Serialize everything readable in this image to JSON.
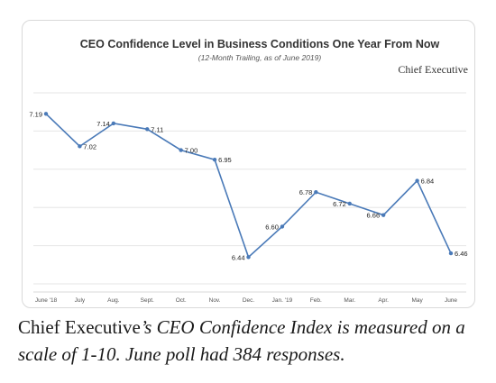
{
  "chart_data": {
    "type": "line",
    "title": "CEO Confidence Level in Business Conditions One Year From Now",
    "subtitle": "(12-Month Trailing, as of June 2019)",
    "brand": "Chief Executive",
    "categories": [
      "June '18",
      "July",
      "Aug.",
      "Sept.",
      "Oct.",
      "Nov.",
      "Dec.",
      "Jan. '19",
      "Feb.",
      "Mar.",
      "Apr.",
      "May",
      "June"
    ],
    "values": [
      7.19,
      7.02,
      7.14,
      7.11,
      7.0,
      6.95,
      6.44,
      6.6,
      6.78,
      6.72,
      6.66,
      6.84,
      6.46
    ],
    "data_labels": [
      "7.19",
      "7.02",
      "7.14",
      "7.11",
      "7.00",
      "6.95",
      "6.44",
      "6.60",
      "6.78",
      "6.72",
      "6.66",
      "6.84",
      "6.46"
    ],
    "ylim": [
      6.3,
      7.3
    ],
    "grid": true,
    "line_color": "#4a7ab8",
    "grid_color": "#e6e6e6"
  },
  "caption": {
    "brand": "Chief Executive",
    "rest": "’s CEO Confidence Index is measured on a scale of 1-10. June poll had 384 responses."
  }
}
